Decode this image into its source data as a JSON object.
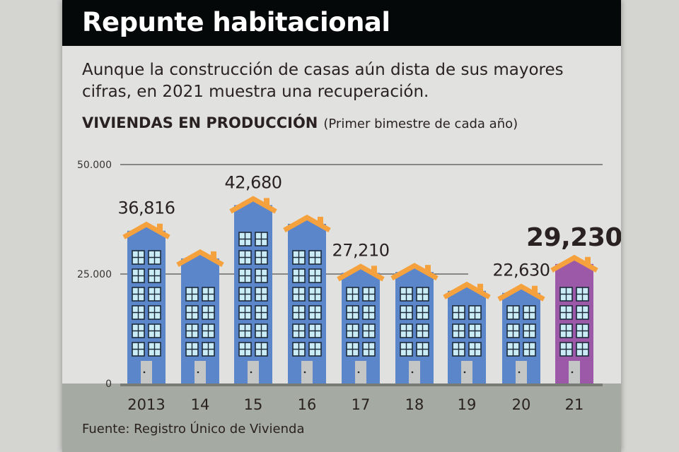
{
  "header": {
    "title": "Repunte habitacional"
  },
  "subtitle": "Aunque la construcción de casas aún dista de sus mayores cifras, en 2021 muestra una recuperación.",
  "source": "Fuente: Registro Único de Vivienda",
  "colors": {
    "building": "#5b86c9",
    "highlight": "#9b59a8",
    "roof": "#f5a23e",
    "window": "#c9ecf7",
    "door": "#c3c6c4",
    "footer": "#a5aaa2"
  },
  "chart_data": {
    "type": "bar",
    "title": "VIVIENDAS EN PRODUCCIÓN",
    "subtitle": "(Primer bimestre de cada año)",
    "categories": [
      "2013",
      "14",
      "15",
      "16",
      "17",
      "18",
      "19",
      "20",
      "21"
    ],
    "values": [
      36816,
      30500,
      42680,
      38400,
      27210,
      27400,
      23100,
      22630,
      29230
    ],
    "data_labels": [
      "36,816",
      "",
      "42,680",
      "",
      "27,210",
      "",
      "",
      "22,630",
      "29,230"
    ],
    "highlight_index": 8,
    "yticks": [
      {
        "value": 0,
        "label": "0"
      },
      {
        "value": 25000,
        "label": "25.000"
      },
      {
        "value": 50000,
        "label": "50.000"
      }
    ],
    "ylim": [
      0,
      50000
    ],
    "grid": true
  }
}
